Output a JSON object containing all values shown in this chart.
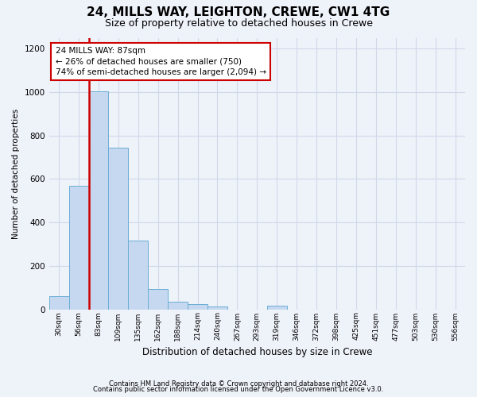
{
  "title1": "24, MILLS WAY, LEIGHTON, CREWE, CW1 4TG",
  "title2": "Size of property relative to detached houses in Crewe",
  "xlabel": "Distribution of detached houses by size in Crewe",
  "ylabel": "Number of detached properties",
  "footer1": "Contains HM Land Registry data © Crown copyright and database right 2024.",
  "footer2": "Contains public sector information licensed under the Open Government Licence v3.0.",
  "bin_labels": [
    "30sqm",
    "56sqm",
    "83sqm",
    "109sqm",
    "135sqm",
    "162sqm",
    "188sqm",
    "214sqm",
    "240sqm",
    "267sqm",
    "293sqm",
    "319sqm",
    "346sqm",
    "372sqm",
    "398sqm",
    "425sqm",
    "451sqm",
    "477sqm",
    "503sqm",
    "530sqm",
    "556sqm"
  ],
  "bar_values": [
    60,
    570,
    1005,
    745,
    315,
    95,
    35,
    22,
    12,
    0,
    0,
    15,
    0,
    0,
    0,
    0,
    0,
    0,
    0,
    0,
    0
  ],
  "bar_color": "#c5d8f0",
  "bar_edge_color": "#6baed6",
  "vline_index": 2,
  "vline_color": "#cc0000",
  "ylim": [
    0,
    1250
  ],
  "yticks": [
    0,
    200,
    400,
    600,
    800,
    1000,
    1200
  ],
  "annotation_text": "24 MILLS WAY: 87sqm\n← 26% of detached houses are smaller (750)\n74% of semi-detached houses are larger (2,094) →",
  "annotation_box_facecolor": "#ffffff",
  "annotation_box_edgecolor": "#cc0000",
  "bg_color": "#eef2f9",
  "grid_color": "#d0d8e8",
  "title1_fontsize": 11,
  "title2_fontsize": 9
}
